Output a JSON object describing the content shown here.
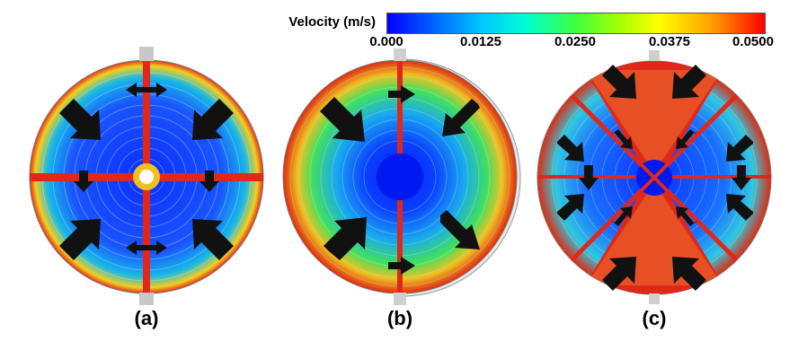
{
  "colorbar": {
    "title": "Velocity (m/s)",
    "ticks": [
      "0.000",
      "0.0125",
      "0.0250",
      "0.0375",
      "0.0500"
    ],
    "min": 0.0,
    "max": 0.05,
    "colors": [
      "#0000ff",
      "#00c8ff",
      "#40ff40",
      "#ffff00",
      "#ff0000"
    ]
  },
  "panels": [
    {
      "label": "(a)"
    },
    {
      "label": "(b)"
    },
    {
      "label": "(c)"
    }
  ]
}
